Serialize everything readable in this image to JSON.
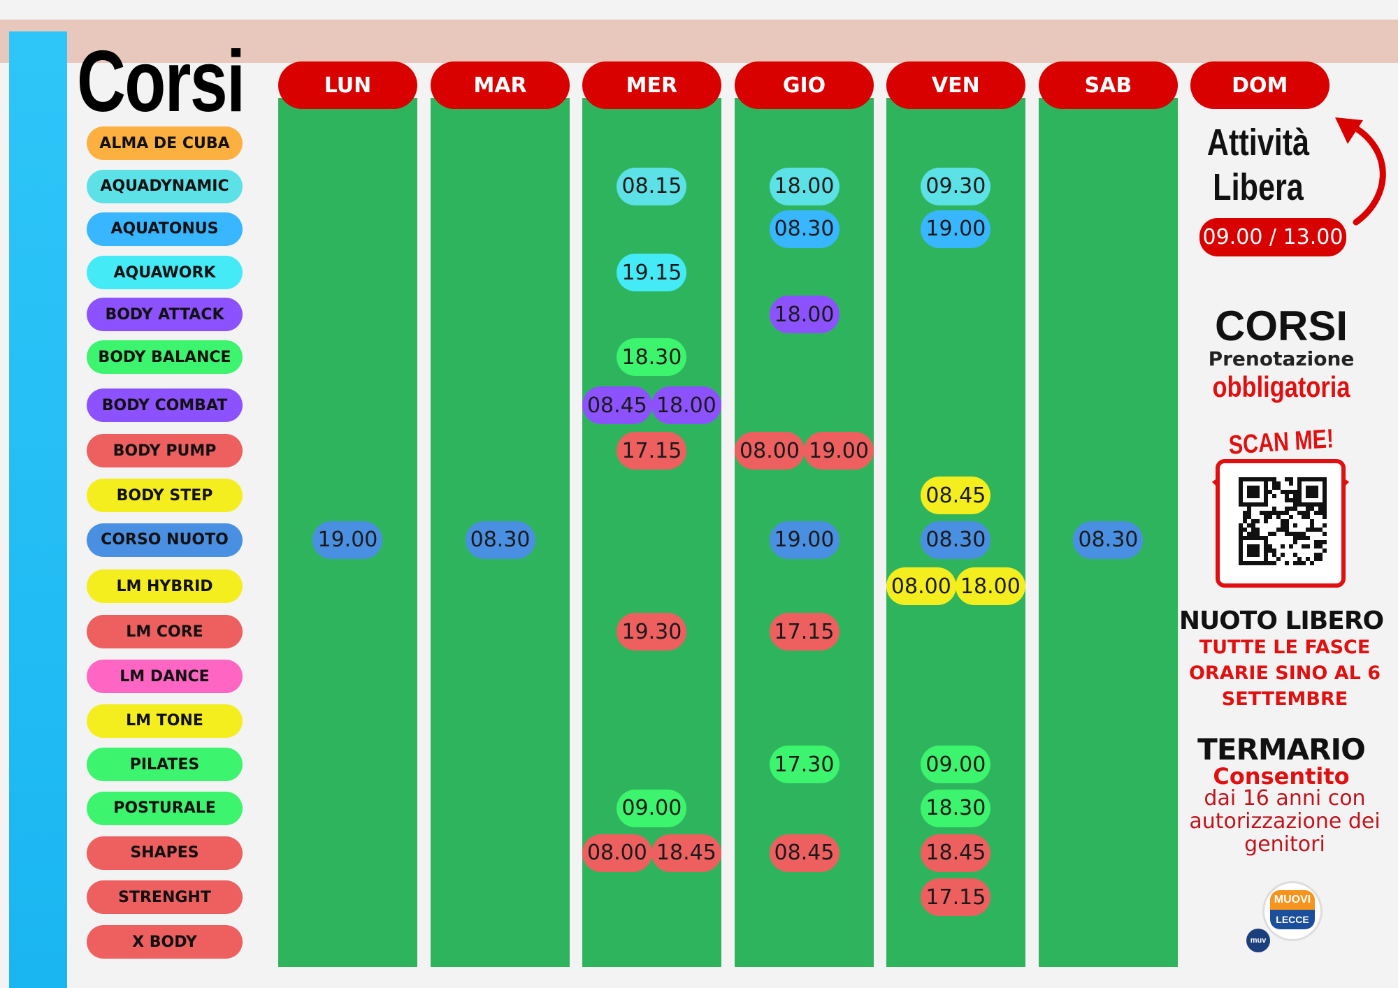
{
  "header": {
    "title": "Corsi"
  },
  "days": [
    "LUN",
    "MAR",
    "MER",
    "GIO",
    "VEN",
    "SAB",
    "DOM"
  ],
  "courses": [
    {
      "name": "ALMA DE CUBA",
      "color": "#fbb040",
      "times": [
        [],
        [],
        [],
        [],
        [],
        []
      ]
    },
    {
      "name": "AQUADYNAMIC",
      "color": "#5ce1e6",
      "times": [
        [],
        [],
        [
          "08.15"
        ],
        [
          "18.00"
        ],
        [
          "09.30"
        ],
        []
      ]
    },
    {
      "name": "AQUATONUS",
      "color": "#38b6ff",
      "times": [
        [],
        [],
        [],
        [
          "08.30"
        ],
        [
          "19.00"
        ],
        []
      ]
    },
    {
      "name": "AQUAWORK",
      "color": "#45eaf7",
      "times": [
        [],
        [],
        [
          "19.15"
        ],
        [],
        [],
        []
      ]
    },
    {
      "name": "BODY ATTACK",
      "color": "#8c52ff",
      "times": [
        [],
        [],
        [],
        [
          "18.00"
        ],
        [],
        []
      ]
    },
    {
      "name": "BODY BALANCE",
      "color": "#3df46e",
      "times": [
        [],
        [],
        [
          "18.30"
        ],
        [],
        [],
        []
      ]
    },
    {
      "name": "BODY COMBAT",
      "color": "#8c52ff",
      "times": [
        [],
        [],
        [
          "08.45",
          "18.00"
        ],
        [],
        [],
        []
      ]
    },
    {
      "name": "BODY PUMP",
      "color": "#ee5f5f",
      "times": [
        [],
        [],
        [
          "17.15"
        ],
        [
          "08.00",
          "19.00"
        ],
        [],
        []
      ]
    },
    {
      "name": "BODY STEP",
      "color": "#f4ee1e",
      "times": [
        [],
        [],
        [],
        [],
        [
          "08.45"
        ],
        []
      ]
    },
    {
      "name": "CORSO NUOTO",
      "color": "#4a90e2",
      "times": [
        [
          "19.00"
        ],
        [
          "08.30"
        ],
        [],
        [
          "19.00"
        ],
        [
          "08.30"
        ],
        [
          "08.30"
        ]
      ]
    },
    {
      "name": "LM HYBRID",
      "color": "#f4ee1e",
      "times": [
        [],
        [],
        [],
        [],
        [
          "08.00",
          "18.00"
        ],
        []
      ]
    },
    {
      "name": "LM CORE",
      "color": "#ee5f5f",
      "times": [
        [],
        [],
        [
          "19.30"
        ],
        [
          "17.15"
        ],
        [],
        []
      ]
    },
    {
      "name": "LM DANCE",
      "color": "#ff66c4",
      "times": [
        [],
        [],
        [],
        [],
        [],
        []
      ]
    },
    {
      "name": "LM TONE",
      "color": "#f4ee1e",
      "times": [
        [],
        [],
        [],
        [],
        [],
        []
      ]
    },
    {
      "name": "PILATES",
      "color": "#3df46e",
      "times": [
        [],
        [],
        [],
        [
          "17.30"
        ],
        [
          "09.00"
        ],
        []
      ]
    },
    {
      "name": "POSTURALE",
      "color": "#3df46e",
      "times": [
        [],
        [],
        [
          "09.00"
        ],
        [],
        [
          "18.30"
        ],
        []
      ]
    },
    {
      "name": "SHAPES",
      "color": "#ee5f5f",
      "times": [
        [],
        [],
        [
          "08.00",
          "18.45"
        ],
        [
          "08.45"
        ],
        [
          "18.45"
        ],
        []
      ]
    },
    {
      "name": "STRENGHT",
      "color": "#ee5f5f",
      "times": [
        [],
        [],
        [],
        [],
        [
          "17.15"
        ],
        []
      ]
    },
    {
      "name": "X BODY",
      "color": "#ee5f5f",
      "times": [
        [],
        [],
        [],
        [],
        [],
        []
      ]
    }
  ],
  "free_activity": {
    "lines": [
      "Attività",
      "Libera"
    ],
    "hours": "09.00 / 13.00"
  },
  "booking": {
    "title": "CORSI",
    "line1": "Prenotazione",
    "line2": "obbligatoria"
  },
  "qr": {
    "label": "SCAN ME!"
  },
  "free_swim": {
    "title": "NUOTO LIBERO",
    "text": "TUTTE LE FASCE ORARIE SINO AL 6 SETTEMBRE"
  },
  "spa": {
    "title": "TERMARIO",
    "subtitle": "Consentito",
    "text": "dai 16 anni con autorizzazione dei genitori"
  },
  "logo": {
    "name": "MUOVI",
    "city": "LECCE",
    "badge": "muv"
  }
}
